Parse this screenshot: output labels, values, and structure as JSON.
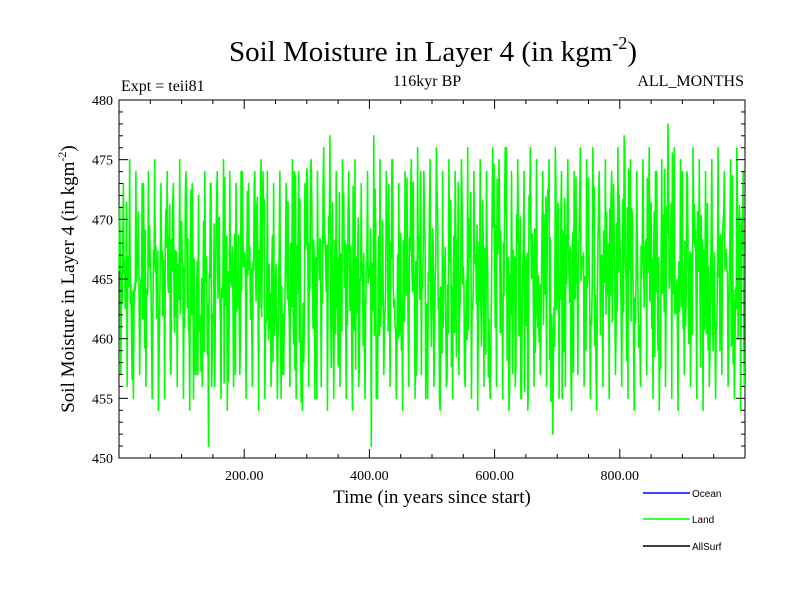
{
  "chart_data": {
    "type": "line",
    "title": "Soil Moisture in Layer 4 (in kgm",
    "title_sup": "-2",
    "title_close": ")",
    "subtitle_center": "116kyr BP",
    "subtitle_left": "Expt = teii81",
    "subtitle_right": "ALL_MONTHS",
    "xlabel": "Time (in years since start)",
    "ylabel": "Soil Moisture in Layer 4 (in kgm",
    "ylabel_sup": "-2",
    "ylabel_close": ")",
    "xlim": [
      0,
      1000
    ],
    "ylim": [
      450,
      480
    ],
    "x_ticks": [
      200,
      400,
      600,
      800
    ],
    "x_tick_labels": [
      "200.00",
      "400.00",
      "600.00",
      "800.00"
    ],
    "y_ticks": [
      450,
      455,
      460,
      465,
      470,
      475,
      480
    ],
    "y_tick_labels": [
      "450",
      "455",
      "460",
      "465",
      "470",
      "475",
      "480"
    ],
    "series": [
      {
        "name": "Land",
        "color": "#00ff00",
        "x_start": 0,
        "x_step": 1,
        "envelope_min": [
          457,
          456,
          455,
          457,
          456,
          455,
          454,
          455,
          457,
          456,
          455,
          454,
          457,
          456,
          451,
          456,
          455,
          454,
          456,
          457,
          455,
          456,
          454,
          455,
          456,
          455,
          457,
          456,
          455,
          454,
          456,
          455,
          456,
          454,
          455,
          456,
          455,
          454,
          456,
          455,
          451,
          455,
          457,
          456,
          455,
          454,
          456,
          455,
          457,
          455,
          456,
          454,
          456,
          455,
          457,
          456,
          455,
          454,
          456,
          455,
          456,
          455,
          454,
          456,
          455,
          454,
          456,
          457,
          456,
          452,
          455,
          456,
          454,
          457,
          456,
          455,
          454,
          456,
          455,
          457,
          456,
          455,
          454,
          456,
          457,
          455,
          454,
          456,
          455,
          454,
          457,
          456,
          455,
          454,
          456,
          455,
          457,
          456,
          455,
          454
        ],
        "envelope_max": [
          473,
          475,
          474,
          473,
          474,
          475,
          473,
          474,
          473,
          475,
          474,
          473,
          472,
          474,
          473,
          474,
          475,
          474,
          473,
          474,
          473,
          474,
          475,
          474,
          473,
          474,
          473,
          475,
          474,
          473,
          475,
          474,
          476,
          477,
          474,
          475,
          474,
          475,
          473,
          474,
          477,
          475,
          474,
          475,
          473,
          474,
          475,
          476,
          474,
          475,
          476,
          474,
          475,
          474,
          475,
          476,
          474,
          475,
          474,
          476,
          475,
          476,
          474,
          475,
          474,
          476,
          475,
          474,
          475,
          476,
          474,
          475,
          474,
          476,
          475,
          476,
          474,
          475,
          474,
          476,
          477,
          475,
          474,
          475,
          476,
          474,
          475,
          478,
          476,
          475,
          474,
          476,
          475,
          474,
          475,
          476,
          474,
          475,
          476,
          474
        ]
      },
      {
        "name": "Ocean",
        "color": "#0000ff"
      },
      {
        "name": "AllSurf",
        "color": "#000000"
      }
    ],
    "legend_position": "bottom-right"
  }
}
